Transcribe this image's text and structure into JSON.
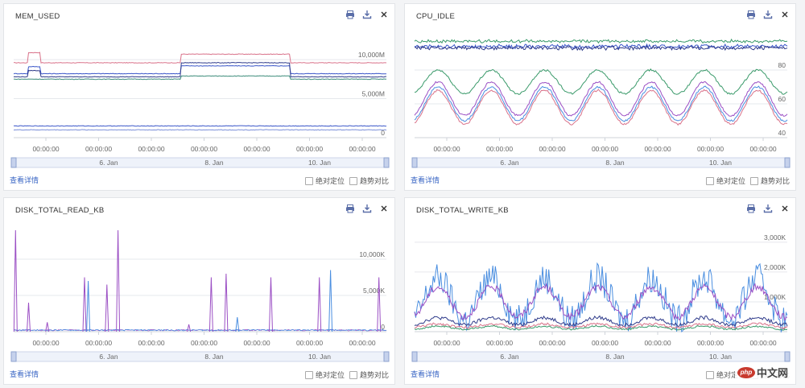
{
  "common": {
    "detail_link": "查看详情",
    "absolute_position": "绝对定位",
    "trend_compare": "趋势对比",
    "time_tick": "00:00:00",
    "nav_labels": [
      "6. Jan",
      "8. Jan",
      "10. Jan"
    ],
    "icons": [
      "print-icon",
      "download-icon",
      "close-icon"
    ]
  },
  "colors": {
    "pink": "#d9728a",
    "blue": "#3b57c9",
    "navy": "#2e3a8a",
    "teal": "#3c8c7a",
    "green": "#3a9a6a",
    "purple": "#9b4fc4",
    "lightblue": "#4a8ee0",
    "violet": "#7b3fb5"
  },
  "panels": [
    {
      "title": "MEM_USED",
      "y_labels": [
        "10,000M",
        "5,000M",
        "0"
      ]
    },
    {
      "title": "CPU_IDLE",
      "y_labels": [
        "80",
        "60",
        "40"
      ]
    },
    {
      "title": "DISK_TOTAL_READ_KB",
      "y_labels": [
        "10,000K",
        "5,000K",
        "0"
      ]
    },
    {
      "title": "DISK_TOTAL_WRITE_KB",
      "y_labels": [
        "3,000K",
        "2,000K",
        "1,000K",
        "0"
      ]
    }
  ],
  "watermark": {
    "logo": "php",
    "text": "中文网"
  },
  "chart_data": [
    {
      "type": "line",
      "title": "MEM_USED",
      "x_ticks": [
        "00:00:00",
        "00:00:00",
        "00:00:00",
        "00:00:00",
        "00:00:00",
        "00:00:00",
        "00:00:00"
      ],
      "ylim": [
        0,
        13000
      ],
      "y_ticks": [
        0,
        5000,
        10000
      ],
      "series": [
        {
          "color": "#d9728a",
          "base": 9600,
          "step": [
            [
              0.04,
              0.07,
              1300
            ],
            [
              0.45,
              0.74,
              1100
            ]
          ]
        },
        {
          "color": "#3b57c9",
          "base": 8200,
          "step": [
            [
              0.04,
              0.07,
              900
            ],
            [
              0.45,
              0.74,
              1000
            ]
          ]
        },
        {
          "color": "#2e3a8a",
          "base": 7800,
          "step": [
            [
              0.04,
              0.07,
              800
            ],
            [
              0.45,
              0.74,
              1800
            ]
          ]
        },
        {
          "color": "#3c8c7a",
          "base": 7500,
          "step": [
            [
              0.45,
              0.74,
              400
            ]
          ]
        },
        {
          "color": "#3b57c9",
          "base": 1500,
          "step": []
        },
        {
          "color": "#7b8fd8",
          "base": 1000,
          "step": []
        }
      ]
    },
    {
      "type": "line",
      "title": "CPU_IDLE",
      "x_ticks": [
        "00:00:00",
        "00:00:00",
        "00:00:00",
        "00:00:00",
        "00:00:00",
        "00:00:00",
        "00:00:00"
      ],
      "ylim": [
        40,
        100
      ],
      "y_ticks": [
        40,
        60,
        80
      ],
      "series": [
        {
          "color": "#3a9a6a",
          "base": 97,
          "amp": 0.5,
          "period": 0
        },
        {
          "color": "#3b57c9",
          "base": 94,
          "amp": 0.8,
          "period": 0
        },
        {
          "color": "#2e3a8a",
          "base": 93,
          "amp": 0.8,
          "period": 0
        },
        {
          "color": "#3a9a6a",
          "base": 73,
          "amp": 7,
          "period": 7
        },
        {
          "color": "#9b4fc4",
          "base": 63,
          "amp": 10,
          "period": 7
        },
        {
          "color": "#4a8ee0",
          "base": 60,
          "amp": 10,
          "period": 7
        },
        {
          "color": "#d9728a",
          "base": 58,
          "amp": 10,
          "period": 7
        }
      ]
    },
    {
      "type": "line",
      "title": "DISK_TOTAL_READ_KB",
      "x_ticks": [
        "00:00:00",
        "00:00:00",
        "00:00:00",
        "00:00:00",
        "00:00:00",
        "00:00:00",
        "00:00:00"
      ],
      "ylim": [
        0,
        14000
      ],
      "y_ticks": [
        0,
        5000,
        10000
      ],
      "spikes": [
        [
          0.005,
          14000,
          "#9b4fc4"
        ],
        [
          0.04,
          4000,
          "#9b4fc4"
        ],
        [
          0.09,
          1300,
          "#9b4fc4"
        ],
        [
          0.19,
          7500,
          "#9b4fc4"
        ],
        [
          0.2,
          7000,
          "#4a8ee0"
        ],
        [
          0.25,
          6500,
          "#9b4fc4"
        ],
        [
          0.28,
          14000,
          "#9b4fc4"
        ],
        [
          0.47,
          1000,
          "#9b4fc4"
        ],
        [
          0.53,
          7500,
          "#9b4fc4"
        ],
        [
          0.57,
          8000,
          "#9b4fc4"
        ],
        [
          0.6,
          2000,
          "#4a8ee0"
        ],
        [
          0.69,
          7500,
          "#9b4fc4"
        ],
        [
          0.82,
          7500,
          "#9b4fc4"
        ],
        [
          0.85,
          8500,
          "#4a8ee0"
        ],
        [
          0.98,
          7500,
          "#9b4fc4"
        ]
      ]
    },
    {
      "type": "line",
      "title": "DISK_TOTAL_WRITE_KB",
      "x_ticks": [
        "00:00:00",
        "00:00:00",
        "00:00:00",
        "00:00:00",
        "00:00:00",
        "00:00:00",
        "00:00:00"
      ],
      "ylim": [
        0,
        3400
      ],
      "y_ticks": [
        0,
        1000,
        2000,
        3000
      ],
      "series": [
        {
          "color": "#4a8ee0",
          "base": 1100,
          "amp": 700,
          "period": 7,
          "noise": 500
        },
        {
          "color": "#9b4fc4",
          "base": 1000,
          "amp": 500,
          "period": 7,
          "noise": 120
        },
        {
          "color": "#2e3a8a",
          "base": 350,
          "amp": 120,
          "period": 7,
          "noise": 60
        },
        {
          "color": "#d9728a",
          "base": 200,
          "amp": 60,
          "period": 7,
          "noise": 40
        },
        {
          "color": "#3a9a6a",
          "base": 130,
          "amp": 50,
          "period": 7,
          "noise": 30
        }
      ]
    }
  ]
}
